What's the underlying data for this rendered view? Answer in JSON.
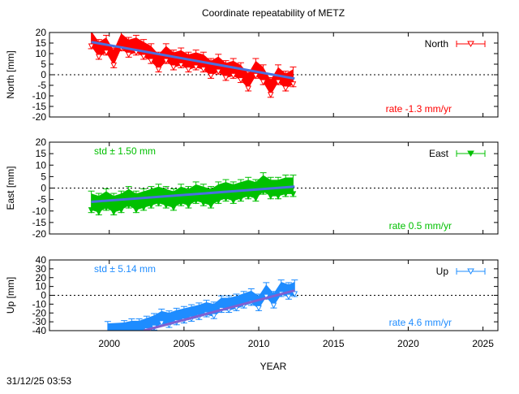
{
  "chart_data": {
    "title": "Coordinate repeatability of METZ",
    "xlabel": "YEAR",
    "xlim": [
      1996,
      2026
    ],
    "xticks": [
      2000,
      2005,
      2010,
      2015,
      2020,
      2025
    ],
    "timestamp": "31/12/25 03:53",
    "panels": [
      {
        "type": "scatter",
        "series_name": "North",
        "ylabel": "North [mm]",
        "ylim": [
          -20,
          20
        ],
        "yticks": [
          -20,
          -15,
          -10,
          -5,
          0,
          5,
          10,
          15,
          20
        ],
        "color": "#ff0000",
        "trend_color": "#4a70e0",
        "marker": "triangle-down-open",
        "legend_position": "top-right",
        "std_text": "",
        "rate_text": "rate -1.3 mm/yr",
        "trend": [
          [
            1998.8,
            15.5
          ],
          [
            2012.4,
            -1.8
          ]
        ],
        "points": [
          [
            1998.8,
            17
          ],
          [
            1999.3,
            12
          ],
          [
            1999.8,
            14
          ],
          [
            2000.3,
            8
          ],
          [
            2000.8,
            16
          ],
          [
            2001.3,
            13
          ],
          [
            2001.8,
            14
          ],
          [
            2002.3,
            12
          ],
          [
            2002.8,
            10
          ],
          [
            2003.3,
            6
          ],
          [
            2003.8,
            10
          ],
          [
            2004.3,
            7
          ],
          [
            2004.8,
            8
          ],
          [
            2005.3,
            6
          ],
          [
            2005.8,
            7
          ],
          [
            2006.3,
            6
          ],
          [
            2006.8,
            3
          ],
          [
            2007.3,
            5
          ],
          [
            2007.8,
            2
          ],
          [
            2008.3,
            3
          ],
          [
            2008.8,
            1
          ],
          [
            2009.3,
            -3
          ],
          [
            2009.8,
            3
          ],
          [
            2010.3,
            0
          ],
          [
            2010.8,
            -6
          ],
          [
            2011.3,
            0
          ],
          [
            2011.8,
            -3
          ],
          [
            2012.3,
            -1
          ]
        ]
      },
      {
        "type": "scatter",
        "series_name": "East",
        "ylabel": "East [mm]",
        "ylim": [
          -20,
          20
        ],
        "yticks": [
          -20,
          -15,
          -10,
          -5,
          0,
          5,
          10,
          15,
          20
        ],
        "color": "#00c000",
        "trend_color": "#4a70e0",
        "marker": "triangle-down-filled",
        "legend_position": "top-right",
        "std_text": "std ± 1.50 mm",
        "rate_text": "rate  0.5 mm/yr",
        "trend": [
          [
            1998.8,
            -6
          ],
          [
            2012.4,
            0.6
          ]
        ],
        "points": [
          [
            1998.8,
            -6
          ],
          [
            1999.3,
            -7
          ],
          [
            1999.8,
            -5
          ],
          [
            2000.3,
            -7
          ],
          [
            2000.8,
            -6
          ],
          [
            2001.3,
            -4
          ],
          [
            2001.8,
            -6
          ],
          [
            2002.3,
            -5
          ],
          [
            2002.8,
            -4
          ],
          [
            2003.3,
            -3
          ],
          [
            2003.8,
            -4
          ],
          [
            2004.3,
            -5
          ],
          [
            2004.8,
            -3
          ],
          [
            2005.3,
            -4
          ],
          [
            2005.8,
            -2
          ],
          [
            2006.3,
            -3
          ],
          [
            2006.8,
            -4
          ],
          [
            2007.3,
            -2
          ],
          [
            2007.8,
            -1
          ],
          [
            2008.3,
            -2
          ],
          [
            2008.8,
            -1
          ],
          [
            2009.3,
            0
          ],
          [
            2009.8,
            -1
          ],
          [
            2010.3,
            2
          ],
          [
            2010.8,
            0
          ],
          [
            2011.3,
            0
          ],
          [
            2011.8,
            1
          ],
          [
            2012.3,
            1
          ]
        ]
      },
      {
        "type": "scatter",
        "series_name": "Up",
        "ylabel": "Up [mm]",
        "ylim": [
          -40,
          40
        ],
        "yticks": [
          -40,
          -30,
          -20,
          -10,
          0,
          10,
          20,
          30,
          40
        ],
        "color": "#1e8cff",
        "trend_color": "#8060d0",
        "marker": "diamond-open",
        "legend_position": "top-right",
        "std_text": "std ± 5.14 mm",
        "rate_text": "rate  4.6 mm/yr",
        "trend": [
          [
            2002.3,
            -40
          ],
          [
            2012.4,
            5.5
          ]
        ],
        "points": [
          [
            1999.9,
            -39
          ],
          [
            2001.0,
            -38
          ],
          [
            2001.5,
            -36
          ],
          [
            2002.0,
            -36
          ],
          [
            2002.5,
            -33
          ],
          [
            2003.0,
            -30
          ],
          [
            2003.5,
            -25
          ],
          [
            2004.0,
            -27
          ],
          [
            2004.5,
            -24
          ],
          [
            2005.0,
            -22
          ],
          [
            2005.5,
            -20
          ],
          [
            2006.0,
            -18
          ],
          [
            2006.5,
            -15
          ],
          [
            2007.0,
            -17
          ],
          [
            2007.5,
            -10
          ],
          [
            2008.0,
            -10
          ],
          [
            2008.5,
            -8
          ],
          [
            2009.0,
            -5
          ],
          [
            2009.5,
            -2
          ],
          [
            2010.0,
            -8
          ],
          [
            2010.5,
            5
          ],
          [
            2011.0,
            -5
          ],
          [
            2011.5,
            8
          ],
          [
            2012.0,
            5
          ],
          [
            2012.4,
            8
          ]
        ]
      }
    ]
  }
}
